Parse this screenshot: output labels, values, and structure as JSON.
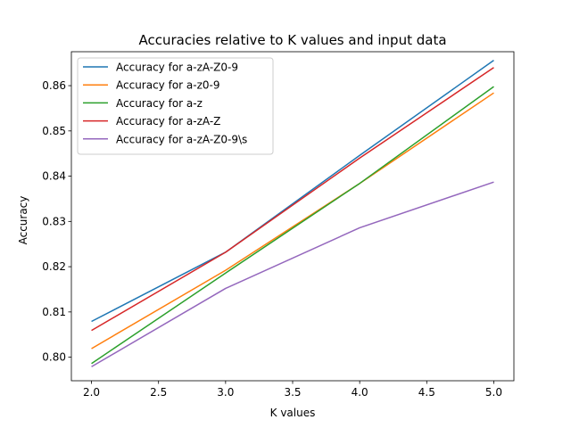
{
  "chart_data": {
    "type": "line",
    "title": "Accuracies relative to K values and input data",
    "xlabel": "K values",
    "ylabel": "Accuracy",
    "xlim": [
      1.85,
      5.15
    ],
    "ylim": [
      0.7948,
      0.8675
    ],
    "xticks": [
      2.0,
      2.5,
      3.0,
      3.5,
      4.0,
      4.5,
      5.0
    ],
    "xtick_labels": [
      "2.0",
      "2.5",
      "3.0",
      "3.5",
      "4.0",
      "4.5",
      "5.0"
    ],
    "yticks": [
      0.8,
      0.81,
      0.82,
      0.83,
      0.84,
      0.85,
      0.86
    ],
    "ytick_labels": [
      "0.80",
      "0.81",
      "0.82",
      "0.83",
      "0.84",
      "0.85",
      "0.86"
    ],
    "grid": false,
    "legend_position": "top-left",
    "x": [
      2,
      3,
      4,
      5
    ],
    "series": [
      {
        "name": "Accuracy for a-zA-Z0-9",
        "color": "#1f77b4",
        "values": [
          0.8079,
          0.8232,
          0.8446,
          0.8656
        ]
      },
      {
        "name": "Accuracy for a-z0-9",
        "color": "#ff7f0e",
        "values": [
          0.8019,
          0.8192,
          0.8384,
          0.8584
        ]
      },
      {
        "name": "Accuracy for a-z",
        "color": "#2ca02c",
        "values": [
          0.7986,
          0.8186,
          0.8384,
          0.8598
        ]
      },
      {
        "name": "Accuracy for a-zA-Z",
        "color": "#d62728",
        "values": [
          0.8059,
          0.8232,
          0.844,
          0.864
        ]
      },
      {
        "name": "Accuracy for a-zA-Z0-9\\s",
        "color": "#9467bd",
        "values": [
          0.7979,
          0.8152,
          0.8286,
          0.8387
        ]
      }
    ]
  }
}
